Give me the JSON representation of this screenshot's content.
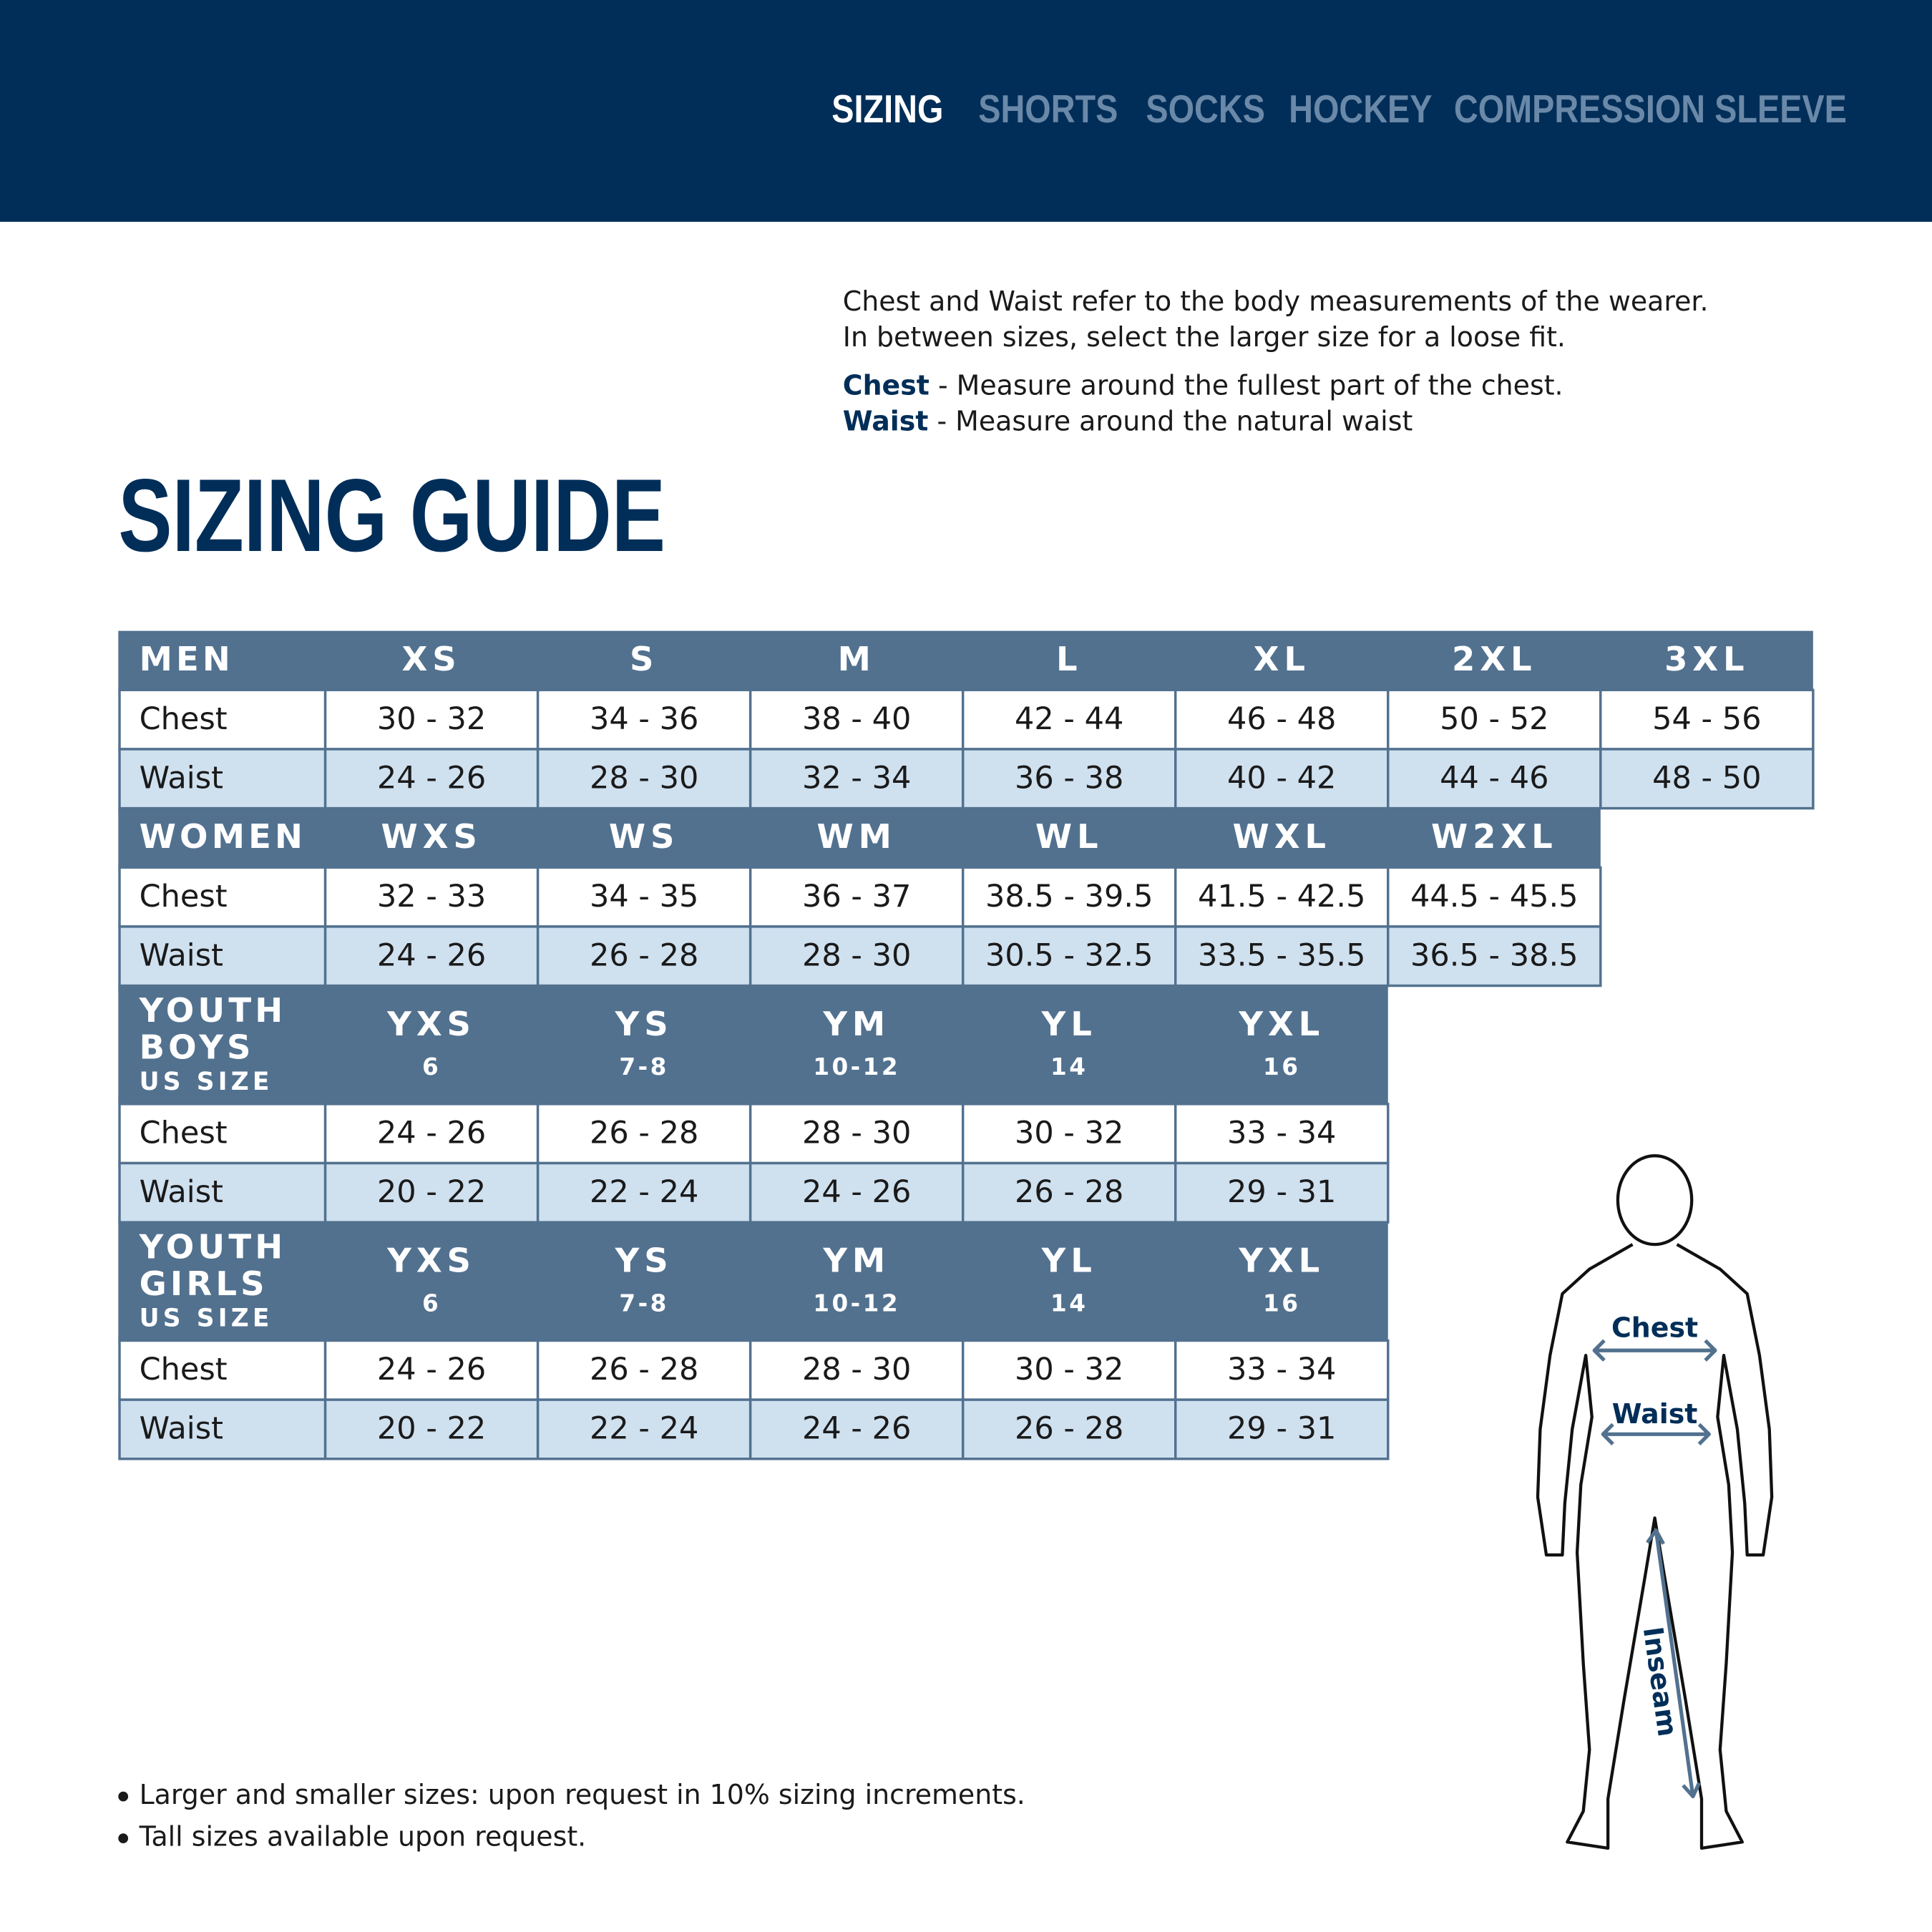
{
  "nav": [
    "SIZING",
    "SHORTS",
    "SOCKS",
    "HOCKEY",
    "COMPRESSION SLEEVE"
  ],
  "intro": [
    "Chest and Waist refer to the body measurements of the wearer.",
    "In between sizes, select the larger size for a loose fit."
  ],
  "definitions": [
    {
      "term": "Chest",
      "text": " - Measure around the fullest part of the chest."
    },
    {
      "term": "Waist",
      "text": " - Measure around the natural waist"
    }
  ],
  "title": "SIZING GUIDE",
  "sections": [
    {
      "label": [
        "MEN"
      ],
      "sizes": [
        "XS",
        "S",
        "M",
        "L",
        "XL",
        "2XL",
        "3XL"
      ],
      "rows": [
        {
          "name": "Chest",
          "values": [
            "30 - 32",
            "34 - 36",
            "38 - 40",
            "42 - 44",
            "46 - 48",
            "50 - 52",
            "54 - 56"
          ]
        },
        {
          "name": "Waist",
          "values": [
            "24 - 26",
            "28 - 30",
            "32 - 34",
            "36 - 38",
            "40 - 42",
            "44 - 46",
            "48 - 50"
          ]
        }
      ]
    },
    {
      "label": [
        "WOMEN"
      ],
      "sizes": [
        "WXS",
        "WS",
        "WM",
        "WL",
        "WXL",
        "W2XL"
      ],
      "rows": [
        {
          "name": "Chest",
          "values": [
            "32 - 33",
            "34 - 35",
            "36 - 37",
            "38.5 - 39.5",
            "41.5 - 42.5",
            "44.5 - 45.5"
          ]
        },
        {
          "name": "Waist",
          "values": [
            "24 - 26",
            "26 - 28",
            "28 - 30",
            "30.5 - 32.5",
            "33.5 - 35.5",
            "36.5 - 38.5"
          ]
        }
      ]
    },
    {
      "label": [
        "YOUTH",
        "BOYS",
        "US SIZE"
      ],
      "sizes": [
        "YXS",
        "YS",
        "YM",
        "YL",
        "YXL"
      ],
      "size_notes": [
        "6",
        "7-8",
        "10-12",
        "14",
        "16"
      ],
      "rows": [
        {
          "name": "Chest",
          "values": [
            "24 - 26",
            "26 - 28",
            "28 - 30",
            "30 - 32",
            "33 - 34"
          ]
        },
        {
          "name": "Waist",
          "values": [
            "20 - 22",
            "22 - 24",
            "24 - 26",
            "26 - 28",
            "29 - 31"
          ]
        }
      ]
    },
    {
      "label": [
        "YOUTH",
        "GIRLS",
        "US SIZE"
      ],
      "sizes": [
        "YXS",
        "YS",
        "YM",
        "YL",
        "YXL"
      ],
      "size_notes": [
        "6",
        "7-8",
        "10-12",
        "14",
        "16"
      ],
      "rows": [
        {
          "name": "Chest",
          "values": [
            "24 - 26",
            "26 - 28",
            "28 - 30",
            "30 - 32",
            "33 - 34"
          ]
        },
        {
          "name": "Waist",
          "values": [
            "20 - 22",
            "22 - 24",
            "24 - 26",
            "26 - 28",
            "29 - 31"
          ]
        }
      ]
    }
  ],
  "notes": [
    "Larger and smaller sizes: upon request in 10% sizing increments.",
    "Tall sizes available upon request."
  ],
  "figure": {
    "chest": "Chest",
    "waist": "Waist",
    "inseam": "Inseam"
  }
}
